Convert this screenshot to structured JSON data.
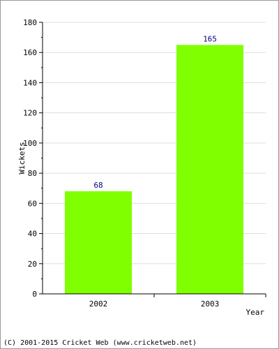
{
  "chart_data": {
    "type": "bar",
    "categories": [
      "2002",
      "2003"
    ],
    "values": [
      68,
      165
    ],
    "xlabel": "Year",
    "ylabel": "Wickets",
    "ylim": [
      0,
      180
    ],
    "yticks": [
      0,
      20,
      40,
      60,
      80,
      100,
      120,
      140,
      160,
      180
    ],
    "grid": true,
    "data_labels": true,
    "colors": {
      "bar": "#80ff00",
      "value_label": "#000080",
      "grid": "#dddddd",
      "axis": "#000000"
    }
  },
  "footer": {
    "copyright": "(C) 2001-2015 Cricket Web (www.cricketweb.net)"
  }
}
